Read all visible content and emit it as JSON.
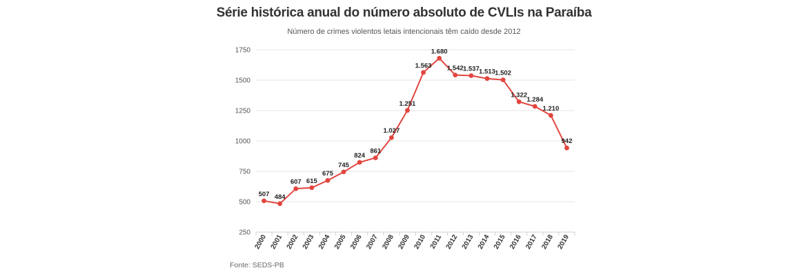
{
  "chart_data": {
    "type": "line",
    "title": "Série histórica anual do número absoluto de CVLIs na Paraíba",
    "subtitle": "Número de crimes violentos letais intencionais têm caído desde 2012",
    "source": "Fonte: SEDS-PB",
    "x": [
      "2000",
      "2001",
      "2002",
      "2003",
      "2004",
      "2005",
      "2006",
      "2007",
      "2008",
      "2009",
      "2010",
      "2011",
      "2012",
      "2013",
      "2014",
      "2015",
      "2016",
      "2017",
      "2018",
      "2019"
    ],
    "series": [
      {
        "values": [
          507,
          484,
          607,
          615,
          675,
          745,
          824,
          861,
          1027,
          1251,
          1563,
          1680,
          1542,
          1537,
          1513,
          1502,
          1322,
          1284,
          1210,
          942
        ],
        "labels": [
          "507",
          "484",
          "607",
          "615",
          "675",
          "745",
          "824",
          "861",
          "1.027",
          "1.251",
          "1.563",
          "1.680",
          "1.542",
          "1.537",
          "1.513",
          "1.502",
          "1.322",
          "1.284",
          "1.210",
          "942"
        ],
        "color": "#e2463f"
      }
    ],
    "yticks": [
      250,
      500,
      750,
      1000,
      1250,
      1500,
      1750
    ],
    "ylim": [
      250,
      1750
    ],
    "grid": true,
    "legend": "none"
  }
}
